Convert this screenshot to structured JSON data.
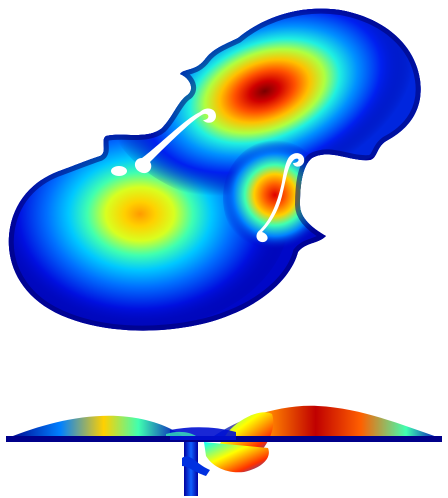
{
  "figure": {
    "colormap": [
      "#00007f",
      "#0000ff",
      "#0080ff",
      "#00ffff",
      "#80ff80",
      "#ffff00",
      "#ff8000",
      "#ff0000",
      "#800000"
    ],
    "background": "#ffffff",
    "views": [
      {
        "name": "top-view",
        "description_icon": "violin-plate-mode-shape-top"
      },
      {
        "name": "side-view",
        "description_icon": "violin-plate-mode-shape-side"
      }
    ]
  }
}
